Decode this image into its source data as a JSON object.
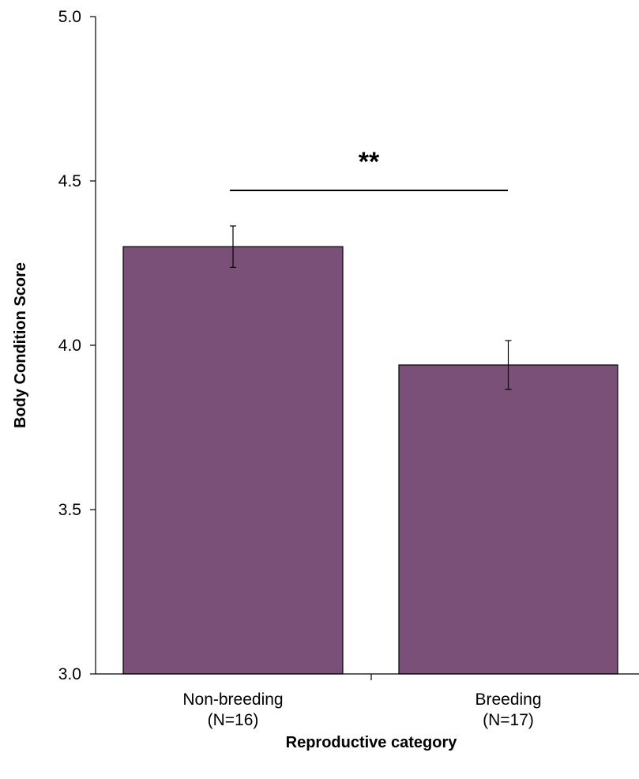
{
  "chart_data": {
    "type": "bar",
    "title": "",
    "xlabel": "Reproductive category",
    "ylabel": "Body Condition Score",
    "ylim": [
      3.0,
      5.0
    ],
    "yticks": [
      "3.0",
      "3.5",
      "4.0",
      "4.5",
      "5.0"
    ],
    "categories": [
      {
        "name": "Non-breeding",
        "n": "(N=16)"
      },
      {
        "name": "Breeding",
        "n": "(N=17)"
      }
    ],
    "values": [
      4.3,
      3.94
    ],
    "errors": [
      0.063,
      0.074
    ],
    "significance": {
      "label": "**",
      "between": [
        0,
        1
      ]
    },
    "grid": false,
    "legend": "none",
    "bar_color": "#7b5078",
    "bar_edge_color": "#000000"
  }
}
